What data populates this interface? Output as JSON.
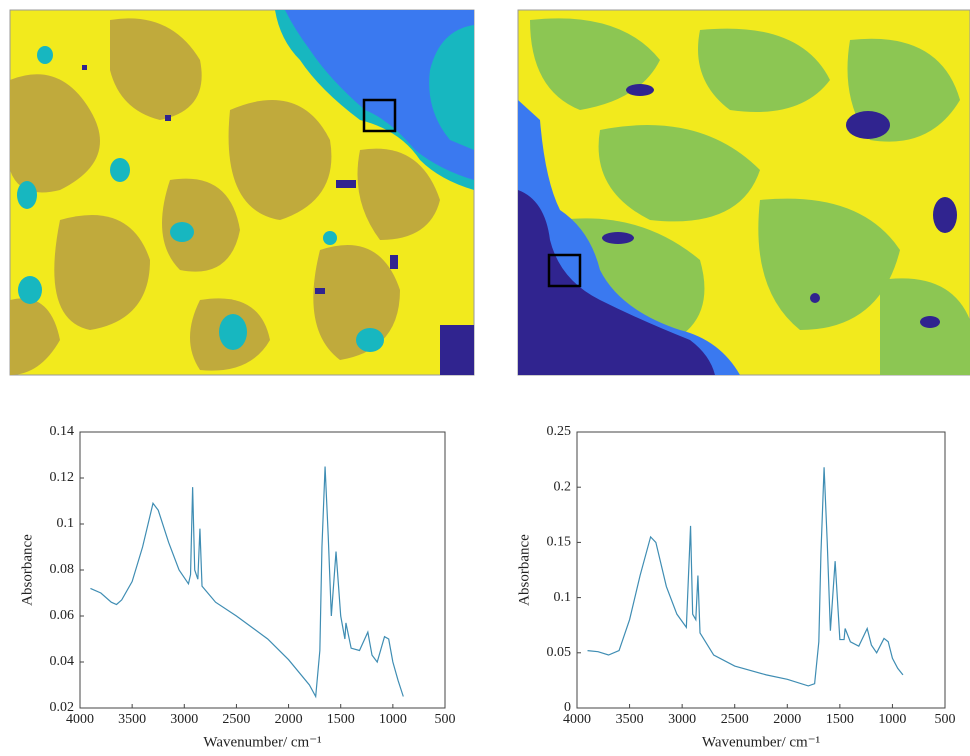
{
  "chart_data": [
    {
      "type": "line",
      "xlabel": "Wavenumber/ cm⁻¹",
      "ylabel": "Absorbance",
      "xlim": [
        4000,
        500
      ],
      "xticks": [
        4000,
        3500,
        3000,
        2500,
        2000,
        1500,
        1000,
        500
      ],
      "ylim": [
        0.02,
        0.14
      ],
      "yticks": [
        0.02,
        0.04,
        0.06,
        0.08,
        0.1,
        0.12,
        0.14
      ],
      "x": [
        3900,
        3800,
        3700,
        3650,
        3600,
        3500,
        3400,
        3300,
        3250,
        3150,
        3050,
        2960,
        2940,
        2920,
        2900,
        2870,
        2850,
        2830,
        2700,
        2500,
        2200,
        2000,
        1800,
        1740,
        1700,
        1680,
        1650,
        1620,
        1590,
        1545,
        1500,
        1460,
        1450,
        1400,
        1320,
        1240,
        1200,
        1150,
        1080,
        1040,
        1000,
        950,
        900
      ],
      "series": [
        {
          "color": "#3f8db3",
          "values": [
            0.072,
            0.07,
            0.066,
            0.065,
            0.067,
            0.075,
            0.09,
            0.109,
            0.106,
            0.092,
            0.08,
            0.074,
            0.078,
            0.116,
            0.08,
            0.076,
            0.098,
            0.073,
            0.066,
            0.06,
            0.05,
            0.041,
            0.03,
            0.025,
            0.045,
            0.09,
            0.125,
            0.095,
            0.06,
            0.088,
            0.06,
            0.05,
            0.057,
            0.046,
            0.045,
            0.053,
            0.043,
            0.04,
            0.051,
            0.05,
            0.04,
            0.032,
            0.025
          ]
        }
      ]
    },
    {
      "type": "line",
      "xlabel": "Wavenumber/ cm⁻¹",
      "ylabel": "Absorbance",
      "xlim": [
        4000,
        500
      ],
      "xticks": [
        4000,
        3500,
        3000,
        2500,
        2000,
        1500,
        1000,
        500
      ],
      "ylim": [
        0,
        0.25
      ],
      "yticks": [
        0,
        0.05,
        0.1,
        0.15,
        0.2,
        0.25
      ],
      "x": [
        3900,
        3800,
        3700,
        3600,
        3500,
        3400,
        3300,
        3250,
        3150,
        3050,
        2960,
        2920,
        2900,
        2870,
        2850,
        2830,
        2700,
        2500,
        2200,
        2000,
        1800,
        1740,
        1700,
        1680,
        1650,
        1620,
        1590,
        1545,
        1500,
        1460,
        1450,
        1400,
        1320,
        1240,
        1200,
        1150,
        1080,
        1040,
        1000,
        950,
        900
      ],
      "series": [
        {
          "color": "#3f8db3",
          "values": [
            0.052,
            0.051,
            0.048,
            0.052,
            0.08,
            0.12,
            0.155,
            0.15,
            0.11,
            0.085,
            0.073,
            0.165,
            0.085,
            0.08,
            0.12,
            0.068,
            0.048,
            0.038,
            0.03,
            0.026,
            0.02,
            0.022,
            0.06,
            0.14,
            0.218,
            0.15,
            0.07,
            0.133,
            0.062,
            0.062,
            0.072,
            0.06,
            0.056,
            0.072,
            0.057,
            0.05,
            0.063,
            0.06,
            0.045,
            0.036,
            0.03
          ]
        }
      ]
    }
  ]
}
